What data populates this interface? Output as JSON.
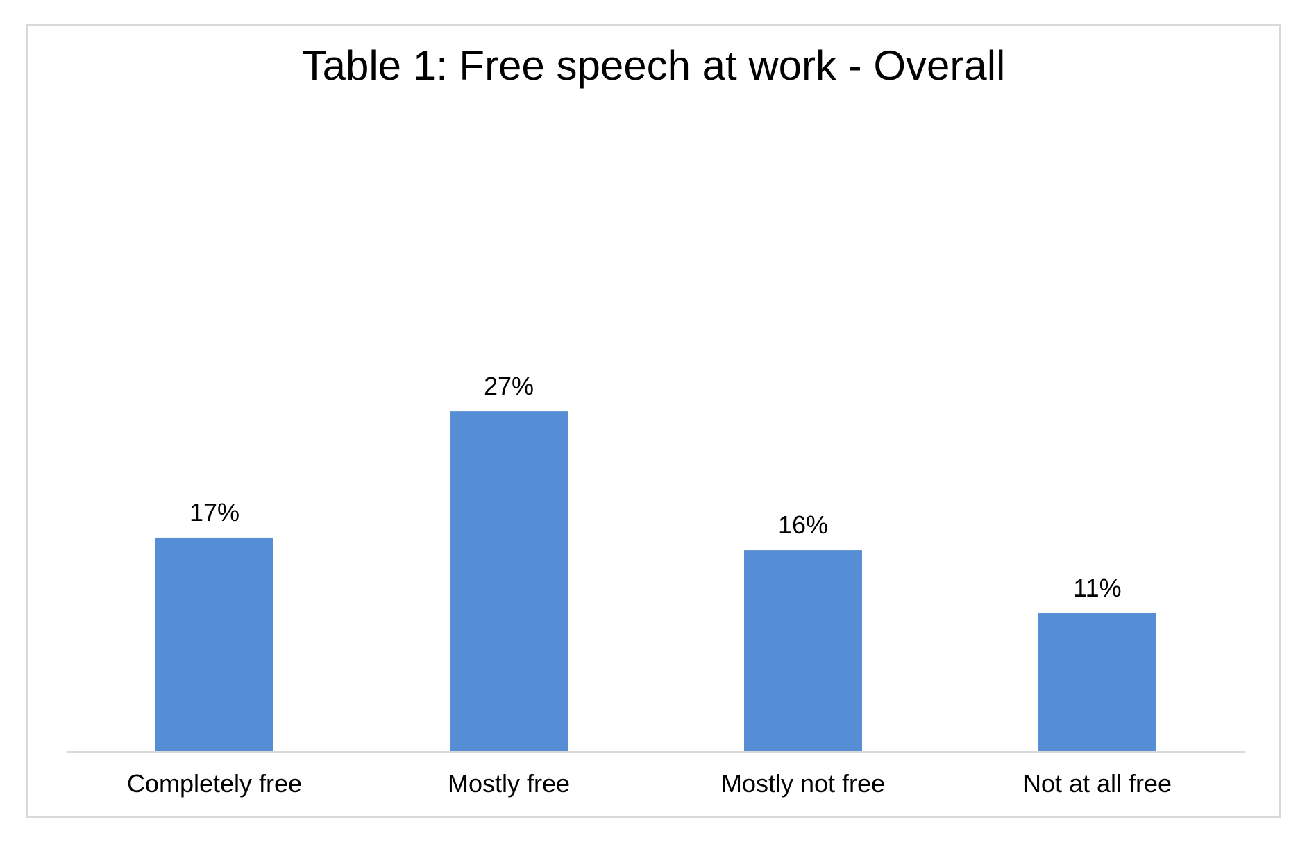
{
  "chart_data": {
    "type": "bar",
    "title": "Table 1: Free speech at work - Overall",
    "categories": [
      "Completely free",
      "Mostly free",
      "Mostly not free",
      "Not at all free"
    ],
    "values": [
      17,
      27,
      16,
      11
    ],
    "data_labels": [
      "17%",
      "27%",
      "16%",
      "11%"
    ],
    "xlabel": "",
    "ylabel": "",
    "ylim": [
      0,
      30
    ],
    "grid": false,
    "legend": "none",
    "bar_color": "#558ed5",
    "axis_color": "#d9d9d9"
  }
}
